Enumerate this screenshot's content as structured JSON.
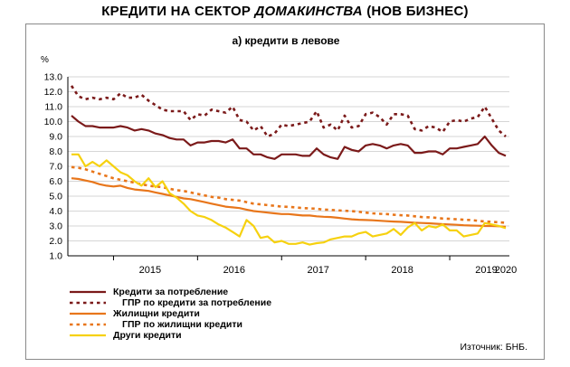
{
  "page": {
    "title_prefix": "КРЕДИТИ НА СЕКТОР ",
    "title_italic": "ДОМАКИНСТВА",
    "title_suffix": " (НОВ БИЗНЕС)"
  },
  "chart_data": {
    "type": "line",
    "title": "а) кредити в левове",
    "ylabel": "%",
    "ylim": [
      1.0,
      13.0
    ],
    "yticks": [
      "1.0",
      "2.0",
      "3.0",
      "4.0",
      "5.0",
      "6.0",
      "7.0",
      "8.0",
      "9.0",
      "10.0",
      "11.0",
      "12.0",
      "13.0"
    ],
    "x_year_labels": [
      "2015",
      "2016",
      "2017",
      "2018",
      "2019",
      "2020"
    ],
    "x_start": "2014-07",
    "x_end": "2020-01",
    "grid": true,
    "legend_position": "bottom-left",
    "source": "Източник: БНБ.",
    "series": [
      {
        "name": "Кредити за потребление",
        "color": "#7b1a1a",
        "style": "solid",
        "values": [
          10.4,
          10.0,
          9.7,
          9.7,
          9.6,
          9.6,
          9.6,
          9.7,
          9.6,
          9.4,
          9.5,
          9.4,
          9.2,
          9.1,
          8.9,
          8.8,
          8.8,
          8.4,
          8.6,
          8.6,
          8.7,
          8.7,
          8.6,
          8.8,
          8.2,
          8.2,
          7.8,
          7.8,
          7.6,
          7.5,
          7.8,
          7.8,
          7.8,
          7.7,
          7.7,
          8.2,
          7.8,
          7.6,
          7.5,
          8.3,
          8.1,
          8.0,
          8.4,
          8.5,
          8.4,
          8.2,
          8.4,
          8.5,
          8.4,
          7.9,
          7.9,
          8.0,
          8.0,
          7.8,
          8.2,
          8.2,
          8.3,
          8.4,
          8.5,
          9.0,
          8.4,
          7.9,
          7.7
        ]
      },
      {
        "name": "ГПР по кредити за потребление",
        "color": "#7b1a1a",
        "style": "dotted",
        "values": [
          12.4,
          11.7,
          11.5,
          11.6,
          11.5,
          11.6,
          11.5,
          11.9,
          11.6,
          11.6,
          11.8,
          11.4,
          11.1,
          10.8,
          10.7,
          10.7,
          10.7,
          10.1,
          10.5,
          10.4,
          10.8,
          10.7,
          10.6,
          11.0,
          10.1,
          10.0,
          9.4,
          9.7,
          9.0,
          9.2,
          9.8,
          9.7,
          9.8,
          9.9,
          10.0,
          10.7,
          9.6,
          9.8,
          9.4,
          10.4,
          9.6,
          9.7,
          10.5,
          10.6,
          10.3,
          9.8,
          10.5,
          10.5,
          10.4,
          9.5,
          9.4,
          9.7,
          9.6,
          9.3,
          10.0,
          10.1,
          10.0,
          10.2,
          10.3,
          11.0,
          10.2,
          9.4,
          9.0
        ]
      },
      {
        "name": "Жилищни кредити",
        "color": "#e8761b",
        "style": "solid",
        "values": [
          6.2,
          6.15,
          6.05,
          5.95,
          5.8,
          5.7,
          5.65,
          5.7,
          5.55,
          5.45,
          5.4,
          5.35,
          5.25,
          5.15,
          5.05,
          4.95,
          4.85,
          4.8,
          4.7,
          4.6,
          4.5,
          4.4,
          4.3,
          4.25,
          4.2,
          4.1,
          4.0,
          3.95,
          3.9,
          3.85,
          3.8,
          3.8,
          3.75,
          3.7,
          3.7,
          3.65,
          3.62,
          3.6,
          3.55,
          3.5,
          3.45,
          3.42,
          3.4,
          3.38,
          3.35,
          3.32,
          3.3,
          3.28,
          3.25,
          3.22,
          3.2,
          3.18,
          3.15,
          3.12,
          3.1,
          3.08,
          3.05,
          3.03,
          3.02,
          3.0,
          3.0,
          2.98,
          2.95
        ]
      },
      {
        "name": "ГПР по жилищни кредити",
        "color": "#e8761b",
        "style": "dotted",
        "values": [
          6.95,
          6.9,
          6.8,
          6.65,
          6.5,
          6.35,
          6.2,
          6.1,
          6.0,
          5.9,
          5.8,
          5.7,
          5.65,
          5.6,
          5.5,
          5.4,
          5.35,
          5.25,
          5.15,
          5.05,
          4.95,
          4.9,
          4.8,
          4.75,
          4.7,
          4.6,
          4.5,
          4.45,
          4.4,
          4.35,
          4.3,
          4.28,
          4.25,
          4.2,
          4.18,
          4.15,
          4.1,
          4.08,
          4.05,
          4.02,
          4.0,
          3.95,
          3.9,
          3.85,
          3.82,
          3.8,
          3.75,
          3.72,
          3.7,
          3.65,
          3.6,
          3.58,
          3.55,
          3.5,
          3.48,
          3.45,
          3.42,
          3.4,
          3.35,
          3.3,
          3.28,
          3.25,
          3.22
        ]
      },
      {
        "name": "Други кредити",
        "color": "#f6d10f",
        "style": "solid",
        "values": [
          7.8,
          7.8,
          7.0,
          7.3,
          7.0,
          7.4,
          7.0,
          6.6,
          6.4,
          6.0,
          5.7,
          6.2,
          5.6,
          6.0,
          5.2,
          4.9,
          4.5,
          4.0,
          3.7,
          3.6,
          3.4,
          3.1,
          2.9,
          2.6,
          2.3,
          3.4,
          3.0,
          2.2,
          2.3,
          1.9,
          2.0,
          1.8,
          1.8,
          1.9,
          1.75,
          1.85,
          1.9,
          2.1,
          2.2,
          2.3,
          2.3,
          2.5,
          2.6,
          2.3,
          2.4,
          2.5,
          2.8,
          2.4,
          2.9,
          3.2,
          2.7,
          3.0,
          2.9,
          3.1,
          2.7,
          2.7,
          2.3,
          2.4,
          2.5,
          3.2,
          3.1,
          3.0,
          2.85
        ]
      }
    ]
  }
}
